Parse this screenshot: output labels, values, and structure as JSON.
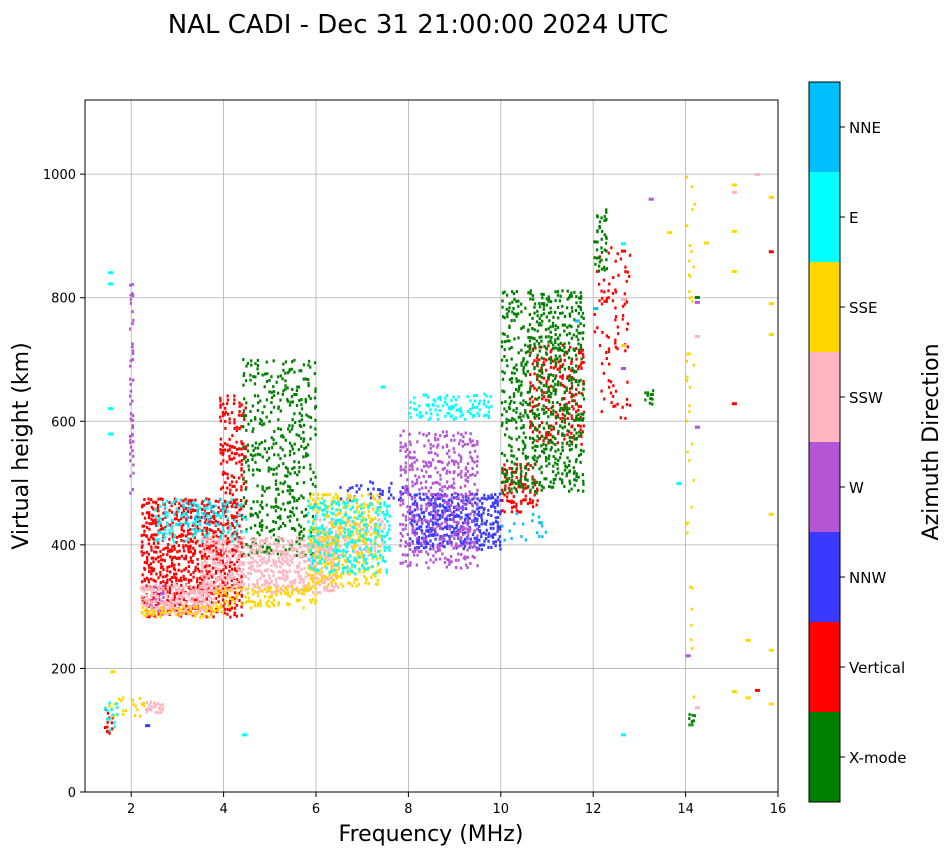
{
  "chart_data": {
    "type": "scatter",
    "title": "NAL CADI - Dec 31 21:00:00 2024 UTC",
    "xlabel": "Frequency (MHz)",
    "ylabel": "Virtual height (km)",
    "xlim": [
      1,
      16
    ],
    "ylim": [
      0,
      1120
    ],
    "xticks": [
      2,
      4,
      6,
      8,
      10,
      12,
      14,
      16
    ],
    "yticks": [
      0,
      200,
      400,
      600,
      800,
      1000
    ],
    "grid": true,
    "colorbar": {
      "label": "Azimuth Direction",
      "categories": [
        {
          "name": "X-mode",
          "color": "#008000"
        },
        {
          "name": "Vertical",
          "color": "#ff0000"
        },
        {
          "name": "NNW",
          "color": "#3a3aff"
        },
        {
          "name": "W",
          "color": "#b455d6"
        },
        {
          "name": "SSW",
          "color": "#ffb6c1"
        },
        {
          "name": "SSE",
          "color": "#ffd700"
        },
        {
          "name": "E",
          "color": "#00ffff"
        },
        {
          "name": "NNE",
          "color": "#00bfff"
        }
      ]
    },
    "series": [
      {
        "name": "Vertical",
        "regions": [
          {
            "x": [
              2.2,
              4.4
            ],
            "y": [
              280,
              470
            ],
            "density": 0.55
          },
          {
            "x": [
              3.9,
              4.5
            ],
            "y": [
              460,
              640
            ],
            "density": 0.3
          },
          {
            "x": [
              10.0,
              10.8
            ],
            "y": [
              450,
              530
            ],
            "density": 0.45
          },
          {
            "x": [
              10.6,
              11.8
            ],
            "y": [
              560,
              720
            ],
            "density": 0.3
          },
          {
            "x": [
              1.4,
              1.6
            ],
            "y": [
              90,
              130
            ],
            "density": 0.5
          },
          {
            "x": [
              12.0,
              12.8
            ],
            "y": [
              600,
              880
            ],
            "density": 0.1
          }
        ],
        "points": [
          [
            12.6,
            873
          ],
          [
            15.0,
            626
          ],
          [
            15.5,
            162
          ],
          [
            15.8,
            872
          ]
        ]
      },
      {
        "name": "X-mode",
        "regions": [
          {
            "x": [
              4.4,
              6.0
            ],
            "y": [
              380,
              700
            ],
            "density": 0.25
          },
          {
            "x": [
              10.0,
              11.8
            ],
            "y": [
              480,
              810
            ],
            "density": 0.35
          },
          {
            "x": [
              12.0,
              12.3
            ],
            "y": [
              840,
              940
            ],
            "density": 0.4
          },
          {
            "x": [
              13.1,
              13.3
            ],
            "y": [
              625,
              650
            ],
            "density": 0.6
          },
          {
            "x": [
              14.0,
              14.2
            ],
            "y": [
              105,
              120
            ],
            "density": 0.5
          }
        ],
        "points": [
          [
            14.2,
            798
          ]
        ]
      },
      {
        "name": "NNW",
        "regions": [
          {
            "x": [
              8.0,
              10.0
            ],
            "y": [
              390,
              480
            ],
            "density": 0.6
          },
          {
            "x": [
              6.5,
              8.0
            ],
            "y": [
              470,
              500
            ],
            "density": 0.2
          }
        ],
        "points": [
          [
            2.3,
            105
          ]
        ]
      },
      {
        "name": "W",
        "regions": [
          {
            "x": [
              7.8,
              9.5
            ],
            "y": [
              360,
              580
            ],
            "density": 0.35
          },
          {
            "x": [
              1.95,
              2.05
            ],
            "y": [
              480,
              830
            ],
            "density": 0.4
          },
          {
            "x": [
              2.4,
              2.7
            ],
            "y": [
              290,
              330
            ],
            "density": 0.4
          }
        ],
        "points": [
          [
            13.2,
            957
          ],
          [
            14.0,
            218
          ],
          [
            14.2,
            588
          ],
          [
            14.2,
            790
          ],
          [
            12.6,
            683
          ]
        ]
      },
      {
        "name": "SSW",
        "regions": [
          {
            "x": [
              2.2,
              3.8
            ],
            "y": [
              285,
              330
            ],
            "density": 0.75
          },
          {
            "x": [
              3.5,
              6.5
            ],
            "y": [
              320,
              410
            ],
            "density": 0.55
          },
          {
            "x": [
              6.0,
              7.5
            ],
            "y": [
              380,
              440
            ],
            "density": 0.4
          },
          {
            "x": [
              2.3,
              2.7
            ],
            "y": [
              125,
              140
            ],
            "density": 0.8
          }
        ],
        "points": [
          [
            12.6,
            795
          ],
          [
            14.2,
            134
          ],
          [
            14.2,
            735
          ],
          [
            15.5,
            997
          ],
          [
            15.0,
            968
          ]
        ]
      },
      {
        "name": "SSE",
        "regions": [
          {
            "x": [
              2.2,
              4.0
            ],
            "y": [
              280,
              300
            ],
            "density": 0.55
          },
          {
            "x": [
              3.8,
              6.0
            ],
            "y": [
              295,
              330
            ],
            "density": 0.45
          },
          {
            "x": [
              5.8,
              7.4
            ],
            "y": [
              330,
              480
            ],
            "density": 0.4
          },
          {
            "x": [
              1.5,
              2.3
            ],
            "y": [
              120,
              150
            ],
            "density": 0.3
          },
          {
            "x": [
              14.0,
              14.2
            ],
            "y": [
              150,
              1000
            ],
            "density": 0.08
          }
        ],
        "points": [
          [
            13.6,
            903
          ],
          [
            14.4,
            886
          ],
          [
            15.0,
            905
          ],
          [
            15.0,
            980
          ],
          [
            15.0,
            840
          ],
          [
            15.0,
            160
          ],
          [
            15.3,
            243
          ],
          [
            15.3,
            150
          ],
          [
            15.8,
            960
          ],
          [
            15.8,
            738
          ],
          [
            15.8,
            447
          ],
          [
            15.8,
            227
          ],
          [
            15.8,
            140
          ],
          [
            15.8,
            788
          ],
          [
            12.6,
            720
          ],
          [
            1.55,
            192
          ]
        ]
      },
      {
        "name": "E",
        "regions": [
          {
            "x": [
              8.0,
              9.8
            ],
            "y": [
              600,
              640
            ],
            "density": 0.4
          },
          {
            "x": [
              5.8,
              7.6
            ],
            "y": [
              350,
              470
            ],
            "density": 0.3
          },
          {
            "x": [
              2.5,
              4.5
            ],
            "y": [
              400,
              470
            ],
            "density": 0.25
          },
          {
            "x": [
              1.4,
              1.7
            ],
            "y": [
              95,
              145
            ],
            "density": 0.4
          }
        ],
        "points": [
          [
            1.5,
            838
          ],
          [
            1.5,
            820
          ],
          [
            1.5,
            618
          ],
          [
            1.5,
            577
          ],
          [
            12.6,
            885
          ],
          [
            12.6,
            90
          ],
          [
            4.4,
            90
          ],
          [
            7.4,
            653
          ],
          [
            13.8,
            497
          ]
        ]
      },
      {
        "name": "NNE",
        "regions": [
          {
            "x": [
              3.0,
              4.0
            ],
            "y": [
              430,
              470
            ],
            "density": 0.2
          },
          {
            "x": [
              10.0,
              11.0
            ],
            "y": [
              400,
              450
            ],
            "density": 0.15
          }
        ],
        "points": [
          [
            12.0,
            780
          ],
          [
            11.6,
            760
          ]
        ]
      }
    ]
  }
}
